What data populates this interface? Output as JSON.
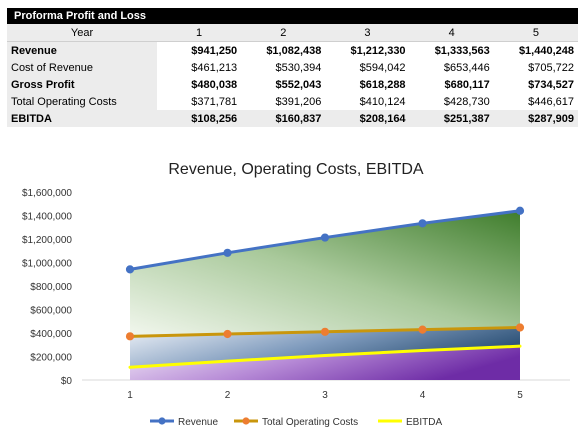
{
  "table": {
    "title": "Proforma Profit and Loss",
    "header_label": "Year",
    "years": [
      "1",
      "2",
      "3",
      "4",
      "5"
    ],
    "rows": [
      {
        "label": "Revenue",
        "bold": true,
        "values": [
          "$941,250",
          "$1,082,438",
          "$1,212,330",
          "$1,333,563",
          "$1,440,248"
        ]
      },
      {
        "label": "Cost of Revenue",
        "bold": false,
        "values": [
          "$461,213",
          "$530,394",
          "$594,042",
          "$653,446",
          "$705,722"
        ]
      },
      {
        "label": "Gross Profit",
        "bold": true,
        "values": [
          "$480,038",
          "$552,043",
          "$618,288",
          "$680,117",
          "$734,527"
        ]
      },
      {
        "label": "Total Operating Costs",
        "bold": false,
        "values": [
          "$371,781",
          "$391,206",
          "$410,124",
          "$428,730",
          "$446,617"
        ]
      },
      {
        "label": "EBITDA",
        "bold": true,
        "values": [
          "$108,256",
          "$160,837",
          "$208,164",
          "$251,387",
          "$287,909"
        ]
      }
    ]
  },
  "chart_data": {
    "type": "line",
    "title": "Revenue, Operating Costs, EBITDA",
    "x": [
      1,
      2,
      3,
      4,
      5
    ],
    "x_tick_labels": [
      "1",
      "2",
      "3",
      "4",
      "5"
    ],
    "ylim": [
      0,
      1600000
    ],
    "y_ticks": [
      0,
      200000,
      400000,
      600000,
      800000,
      1000000,
      1200000,
      1400000,
      1600000
    ],
    "y_tick_labels": [
      "$0",
      "$200,000",
      "$400,000",
      "$600,000",
      "$800,000",
      "$1,000,000",
      "$1,200,000",
      "$1,400,000",
      "$1,600,000"
    ],
    "grid": false,
    "legend_position": "bottom",
    "series": [
      {
        "name": "Revenue",
        "values": [
          941250,
          1082438,
          1212330,
          1333563,
          1440248
        ],
        "color": "#4472c4",
        "marker": true,
        "fill": "green-gradient"
      },
      {
        "name": "Total Operating Costs",
        "values": [
          371781,
          391206,
          410124,
          428730,
          446617
        ],
        "color": "#c9960c",
        "marker_color": "#ed7d31",
        "marker": true,
        "fill": "blue-gradient"
      },
      {
        "name": "EBITDA",
        "values": [
          108256,
          160837,
          208164,
          251387,
          287909
        ],
        "color": "#ffff00",
        "marker": false,
        "fill": "purple-gradient"
      }
    ]
  }
}
